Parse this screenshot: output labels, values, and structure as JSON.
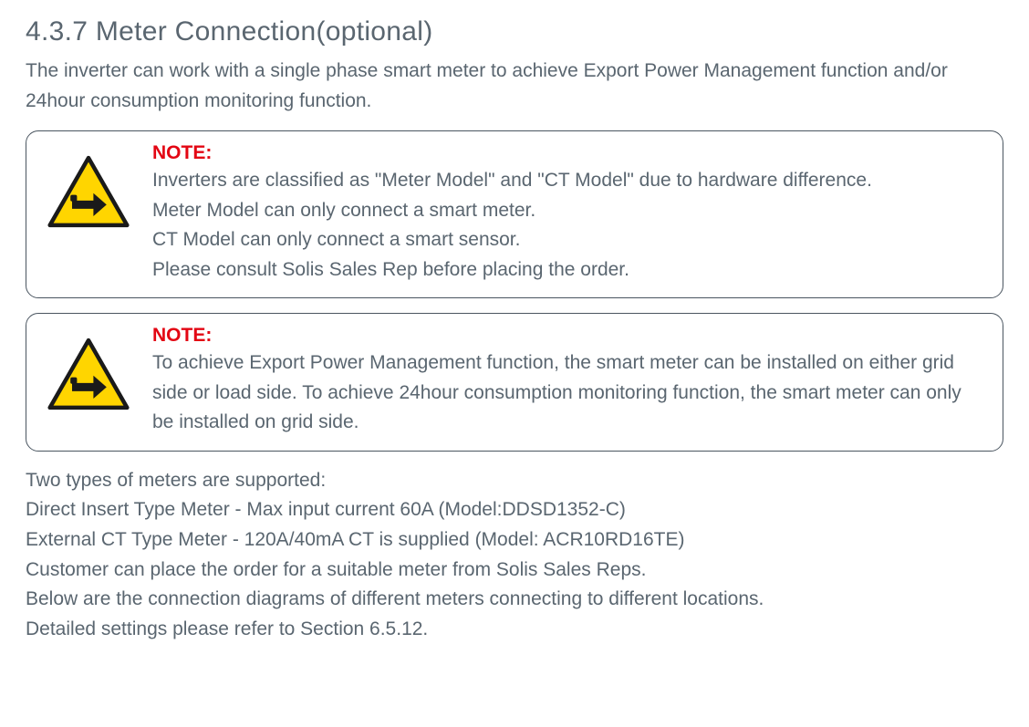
{
  "colors": {
    "text": "#5a6670",
    "noteLabel": "#e30613",
    "border": "#4a5560",
    "triangleFill": "#ffd500",
    "triangleStroke": "#1a1a1a",
    "handFill": "#1a1a1a",
    "background": "#ffffff"
  },
  "heading": "4.3.7 Meter Connection(optional)",
  "intro": "The inverter can work with a single phase smart meter to achieve Export Power Management function and/or 24hour consumption monitoring function.",
  "note1": {
    "label": "NOTE:",
    "body": "Inverters are classified as \"Meter Model\" and \"CT Model\" due to hardware difference.\nMeter Model can only connect a smart meter.\nCT Model can only connect a smart sensor.\nPlease consult Solis Sales Rep before placing the order."
  },
  "note2": {
    "label": "NOTE:",
    "body": "To achieve Export Power Management function, the smart meter can be installed on either grid side or load side. To achieve 24hour consumption monitoring function, the smart meter can only be installed on grid side."
  },
  "body": {
    "l1": "Two types of meters are supported:",
    "l2": "Direct Insert Type Meter - Max input current 60A (Model:DDSD1352-C)",
    "l3": "External CT Type Meter - 120A/40mA CT is supplied (Model: ACR10RD16TE)",
    "l4": "Customer can place the order for a suitable meter from Solis Sales Reps.",
    "l5": "Below are the connection diagrams of different meters connecting to different locations.",
    "l6": "Detailed settings please refer to Section 6.5.12."
  }
}
